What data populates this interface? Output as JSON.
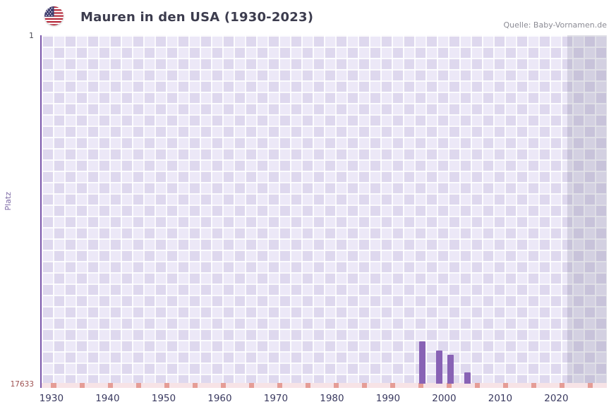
{
  "header": {
    "title": "Mauren in den USA (1930-2023)",
    "source": "Quelle: Baby-Vornamen.de",
    "flag_icon": "us-flag-icon"
  },
  "chart_data": {
    "type": "bar",
    "title": "Mauren in den USA (1930-2023)",
    "ylabel": "Platz",
    "y_axis": {
      "top_label": "1",
      "bottom_label": "17633",
      "min_rank": 1,
      "max_rank": 17633,
      "inverted": true
    },
    "xlim": [
      1928,
      2029
    ],
    "xticks": [
      1930,
      1940,
      1950,
      1960,
      1970,
      1980,
      1990,
      2000,
      2010,
      2020
    ],
    "bars": [
      {
        "year": 1996,
        "rank": 15500
      },
      {
        "year": 1999,
        "rank": 15950
      },
      {
        "year": 2001,
        "rank": 16170
      },
      {
        "year": 2004,
        "rank": 17060
      }
    ],
    "recent_band_start": 2022,
    "legend": "none",
    "grid": "checkered-lavender",
    "colors": {
      "bar": "#8862b5",
      "axis": "#7b57ab",
      "grid_light": "#ece8f7",
      "grid_dark": "#ded8ee",
      "baseline_light": "#f7e3e6",
      "baseline_dark": "#e59d96",
      "recent_band": "rgba(124,121,148,0.22)"
    }
  }
}
